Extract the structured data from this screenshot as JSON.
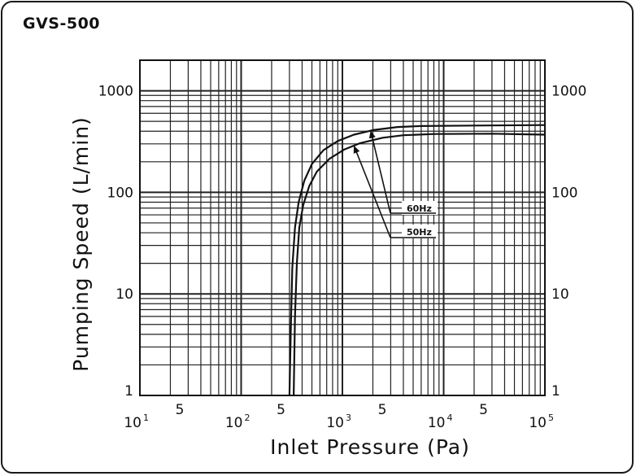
{
  "title": "GVS-500",
  "chart_data": {
    "type": "line",
    "title": "GVS-500",
    "xlabel": "Inlet Pressure (Pa)",
    "ylabel": "Pumping Speed (L/min)",
    "xscale": "log",
    "yscale": "log",
    "xlim": [
      10,
      100000
    ],
    "ylim": [
      1,
      2000
    ],
    "grid": true,
    "x_ticks": [
      {
        "value": 10,
        "base": "10",
        "exp": "1"
      },
      {
        "value": 50,
        "label": "5"
      },
      {
        "value": 100,
        "base": "10",
        "exp": "2"
      },
      {
        "value": 500,
        "label": "5"
      },
      {
        "value": 1000,
        "base": "10",
        "exp": "3"
      },
      {
        "value": 5000,
        "label": "5"
      },
      {
        "value": 10000,
        "base": "10",
        "exp": "4"
      },
      {
        "value": 50000,
        "label": "5"
      },
      {
        "value": 100000,
        "base": "10",
        "exp": "5"
      }
    ],
    "y_ticks": [
      {
        "value": 1,
        "label": "1"
      },
      {
        "value": 10,
        "label": "10"
      },
      {
        "value": 100,
        "label": "100"
      },
      {
        "value": 1000,
        "label": "1000"
      }
    ],
    "series": [
      {
        "name": "60Hz",
        "x": [
          300,
          310,
          320,
          340,
          370,
          420,
          500,
          650,
          900,
          1300,
          2000,
          3500,
          6000,
          20000,
          100000
        ],
        "y": [
          1,
          5,
          18,
          45,
          80,
          130,
          190,
          260,
          320,
          370,
          410,
          440,
          450,
          455,
          460
        ]
      },
      {
        "name": "50Hz",
        "x": [
          330,
          340,
          355,
          375,
          410,
          470,
          560,
          750,
          1050,
          1500,
          2500,
          4000,
          8000,
          30000,
          100000
        ],
        "y": [
          1,
          6,
          20,
          45,
          75,
          115,
          160,
          215,
          265,
          305,
          345,
          365,
          375,
          378,
          370
        ]
      }
    ],
    "annotations": [
      {
        "text": "60Hz",
        "points_to_series": "60Hz"
      },
      {
        "text": "50Hz",
        "points_to_series": "50Hz"
      }
    ]
  }
}
